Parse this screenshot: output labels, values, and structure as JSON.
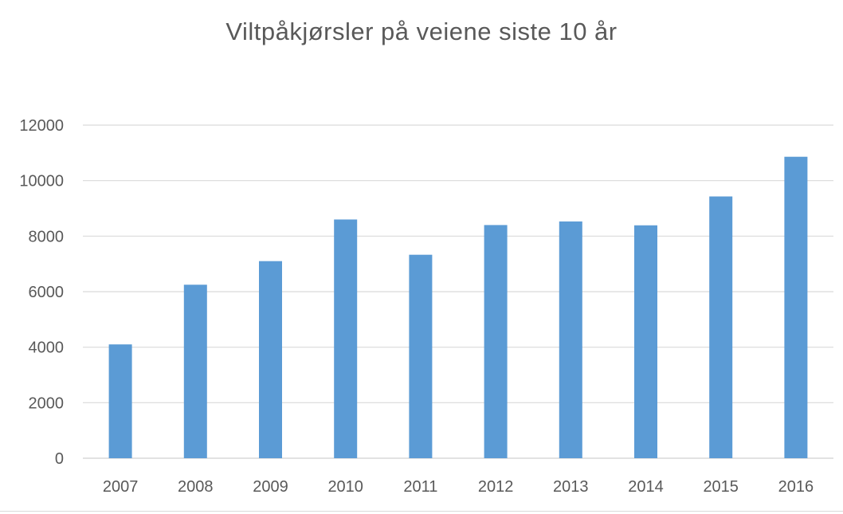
{
  "chart_data": {
    "type": "bar",
    "title": "Viltpåkjørsler på veiene siste 10 år",
    "xlabel": "",
    "ylabel": "",
    "categories": [
      "2007",
      "2008",
      "2009",
      "2010",
      "2011",
      "2012",
      "2013",
      "2014",
      "2015",
      "2016"
    ],
    "values": [
      4100,
      6250,
      7100,
      8600,
      7330,
      8400,
      8530,
      8390,
      9430,
      10860
    ],
    "ylim": [
      0,
      12000
    ],
    "yticks": [
      "0",
      "2000",
      "4000",
      "6000",
      "8000",
      "10000",
      "12000"
    ],
    "grid": true,
    "legend": "none",
    "bar_color": "#5b9bd5",
    "grid_color": "#d9d9d9",
    "text_color": "#595959"
  }
}
